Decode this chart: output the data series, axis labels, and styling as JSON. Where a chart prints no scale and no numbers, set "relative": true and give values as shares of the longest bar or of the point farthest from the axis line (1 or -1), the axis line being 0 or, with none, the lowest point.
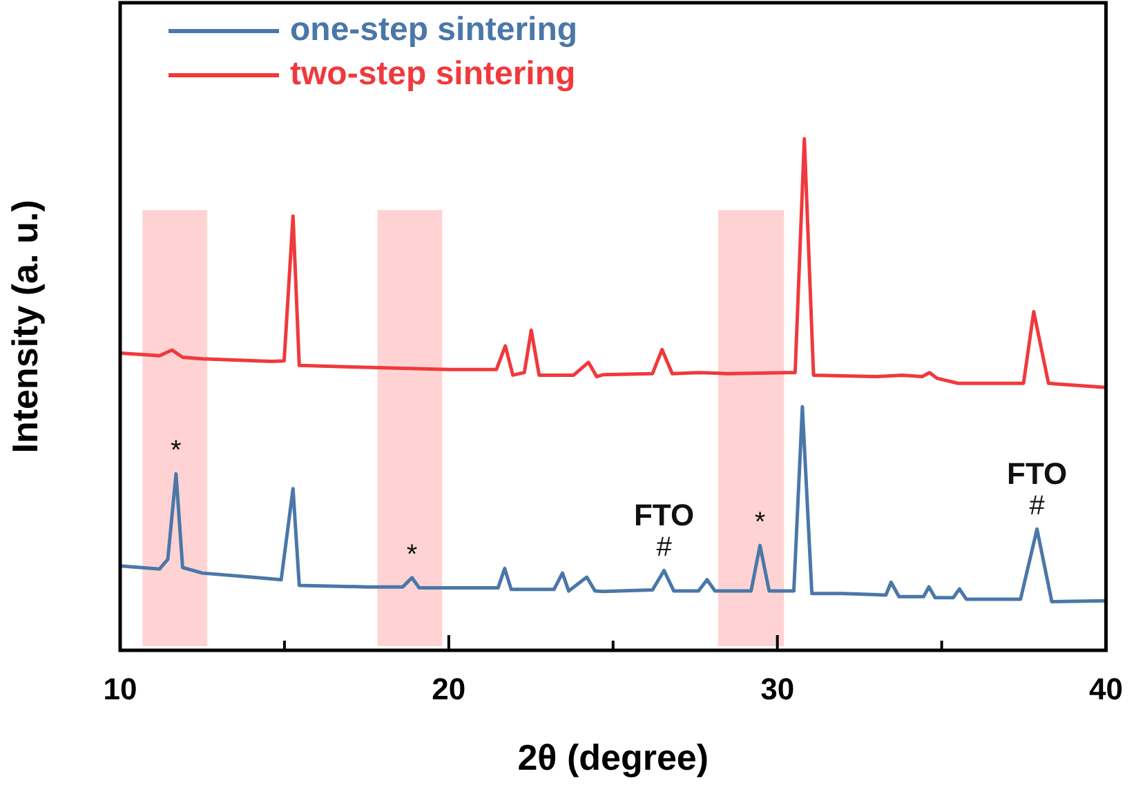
{
  "chart_data": {
    "type": "line",
    "xlabel": "2θ (degree)",
    "ylabel": "Intensity (a. u.)",
    "relative": true,
    "xlim": [
      10,
      40
    ],
    "xticks": [
      10,
      {
        "value": 15,
        "label": null
      },
      20,
      {
        "value": 25,
        "label": null
      },
      30,
      {
        "value": 35,
        "label": null
      },
      40
    ],
    "legend": "top left",
    "grid": false,
    "marker": "none",
    "line_style": "solid",
    "bands": [
      {
        "axis": "x",
        "from": 10.68,
        "to": 12.65,
        "color": "#ffd3d3"
      },
      {
        "axis": "x",
        "from": 17.83,
        "to": 19.8,
        "color": "#ffd3d3"
      },
      {
        "axis": "x",
        "from": 28.2,
        "to": 30.2,
        "color": "#ffd3d3"
      }
    ],
    "annotations": [
      {
        "text": "*",
        "x": 11.7,
        "y": 0.345
      },
      {
        "text": "*",
        "x": 18.88,
        "y": 0.142
      },
      {
        "text": "#",
        "x": 26.55,
        "y": 0.156
      },
      {
        "text": "FTO",
        "x": 26.55,
        "y": 0.156
      },
      {
        "text": "*",
        "x": 29.47,
        "y": 0.205
      },
      {
        "text": "#",
        "x": 37.9,
        "y": 0.237
      },
      {
        "text": "FTO",
        "x": 37.9,
        "y": 0.237
      }
    ],
    "series": [
      {
        "name": "one-step sintering",
        "color": "#4a77a8",
        "x": [
          10,
          11.2,
          11.45,
          11.7,
          11.9,
          12.5,
          14,
          14.9,
          15.26,
          15.45,
          17.5,
          18.6,
          18.88,
          19.1,
          21.5,
          21.7,
          21.9,
          23.2,
          23.46,
          23.65,
          24.2,
          24.45,
          24.7,
          26.2,
          26.55,
          26.85,
          27.6,
          27.86,
          28.1,
          29.2,
          29.47,
          29.75,
          30.5,
          30.76,
          31.05,
          32,
          33.3,
          33.46,
          33.7,
          34.45,
          34.61,
          34.8,
          35.35,
          35.54,
          35.75,
          37.4,
          37.9,
          38.35,
          40
        ],
        "values": [
          0.165,
          0.159,
          0.178,
          0.345,
          0.162,
          0.151,
          0.143,
          0.138,
          0.316,
          0.127,
          0.124,
          0.124,
          0.142,
          0.122,
          0.122,
          0.16,
          0.119,
          0.119,
          0.151,
          0.116,
          0.143,
          0.116,
          0.115,
          0.118,
          0.156,
          0.116,
          0.116,
          0.138,
          0.116,
          0.116,
          0.205,
          0.116,
          0.116,
          0.476,
          0.111,
          0.111,
          0.108,
          0.133,
          0.105,
          0.105,
          0.124,
          0.103,
          0.103,
          0.12,
          0.1,
          0.1,
          0.237,
          0.095,
          0.097
        ]
      },
      {
        "name": "two-step sintering",
        "color": "#f0393c",
        "x": [
          10,
          11.2,
          11.58,
          11.9,
          12.5,
          14.6,
          14.99,
          15.26,
          15.45,
          17,
          20,
          21.45,
          21.72,
          21.95,
          22.3,
          22.51,
          22.75,
          23.8,
          24.25,
          24.5,
          24.71,
          26.2,
          26.49,
          26.8,
          27.6,
          28.5,
          30.3,
          30.54,
          30.82,
          31.1,
          33,
          33.8,
          34.4,
          34.63,
          34.85,
          35.5,
          37.49,
          37.8,
          38.25,
          40
        ],
        "values": [
          0.581,
          0.576,
          0.587,
          0.573,
          0.57,
          0.565,
          0.566,
          0.849,
          0.557,
          0.554,
          0.549,
          0.549,
          0.595,
          0.538,
          0.543,
          0.626,
          0.538,
          0.538,
          0.563,
          0.535,
          0.539,
          0.541,
          0.588,
          0.541,
          0.543,
          0.541,
          0.543,
          0.543,
          1,
          0.538,
          0.535,
          0.538,
          0.535,
          0.543,
          0.532,
          0.522,
          0.522,
          0.662,
          0.522,
          0.514
        ]
      }
    ]
  }
}
